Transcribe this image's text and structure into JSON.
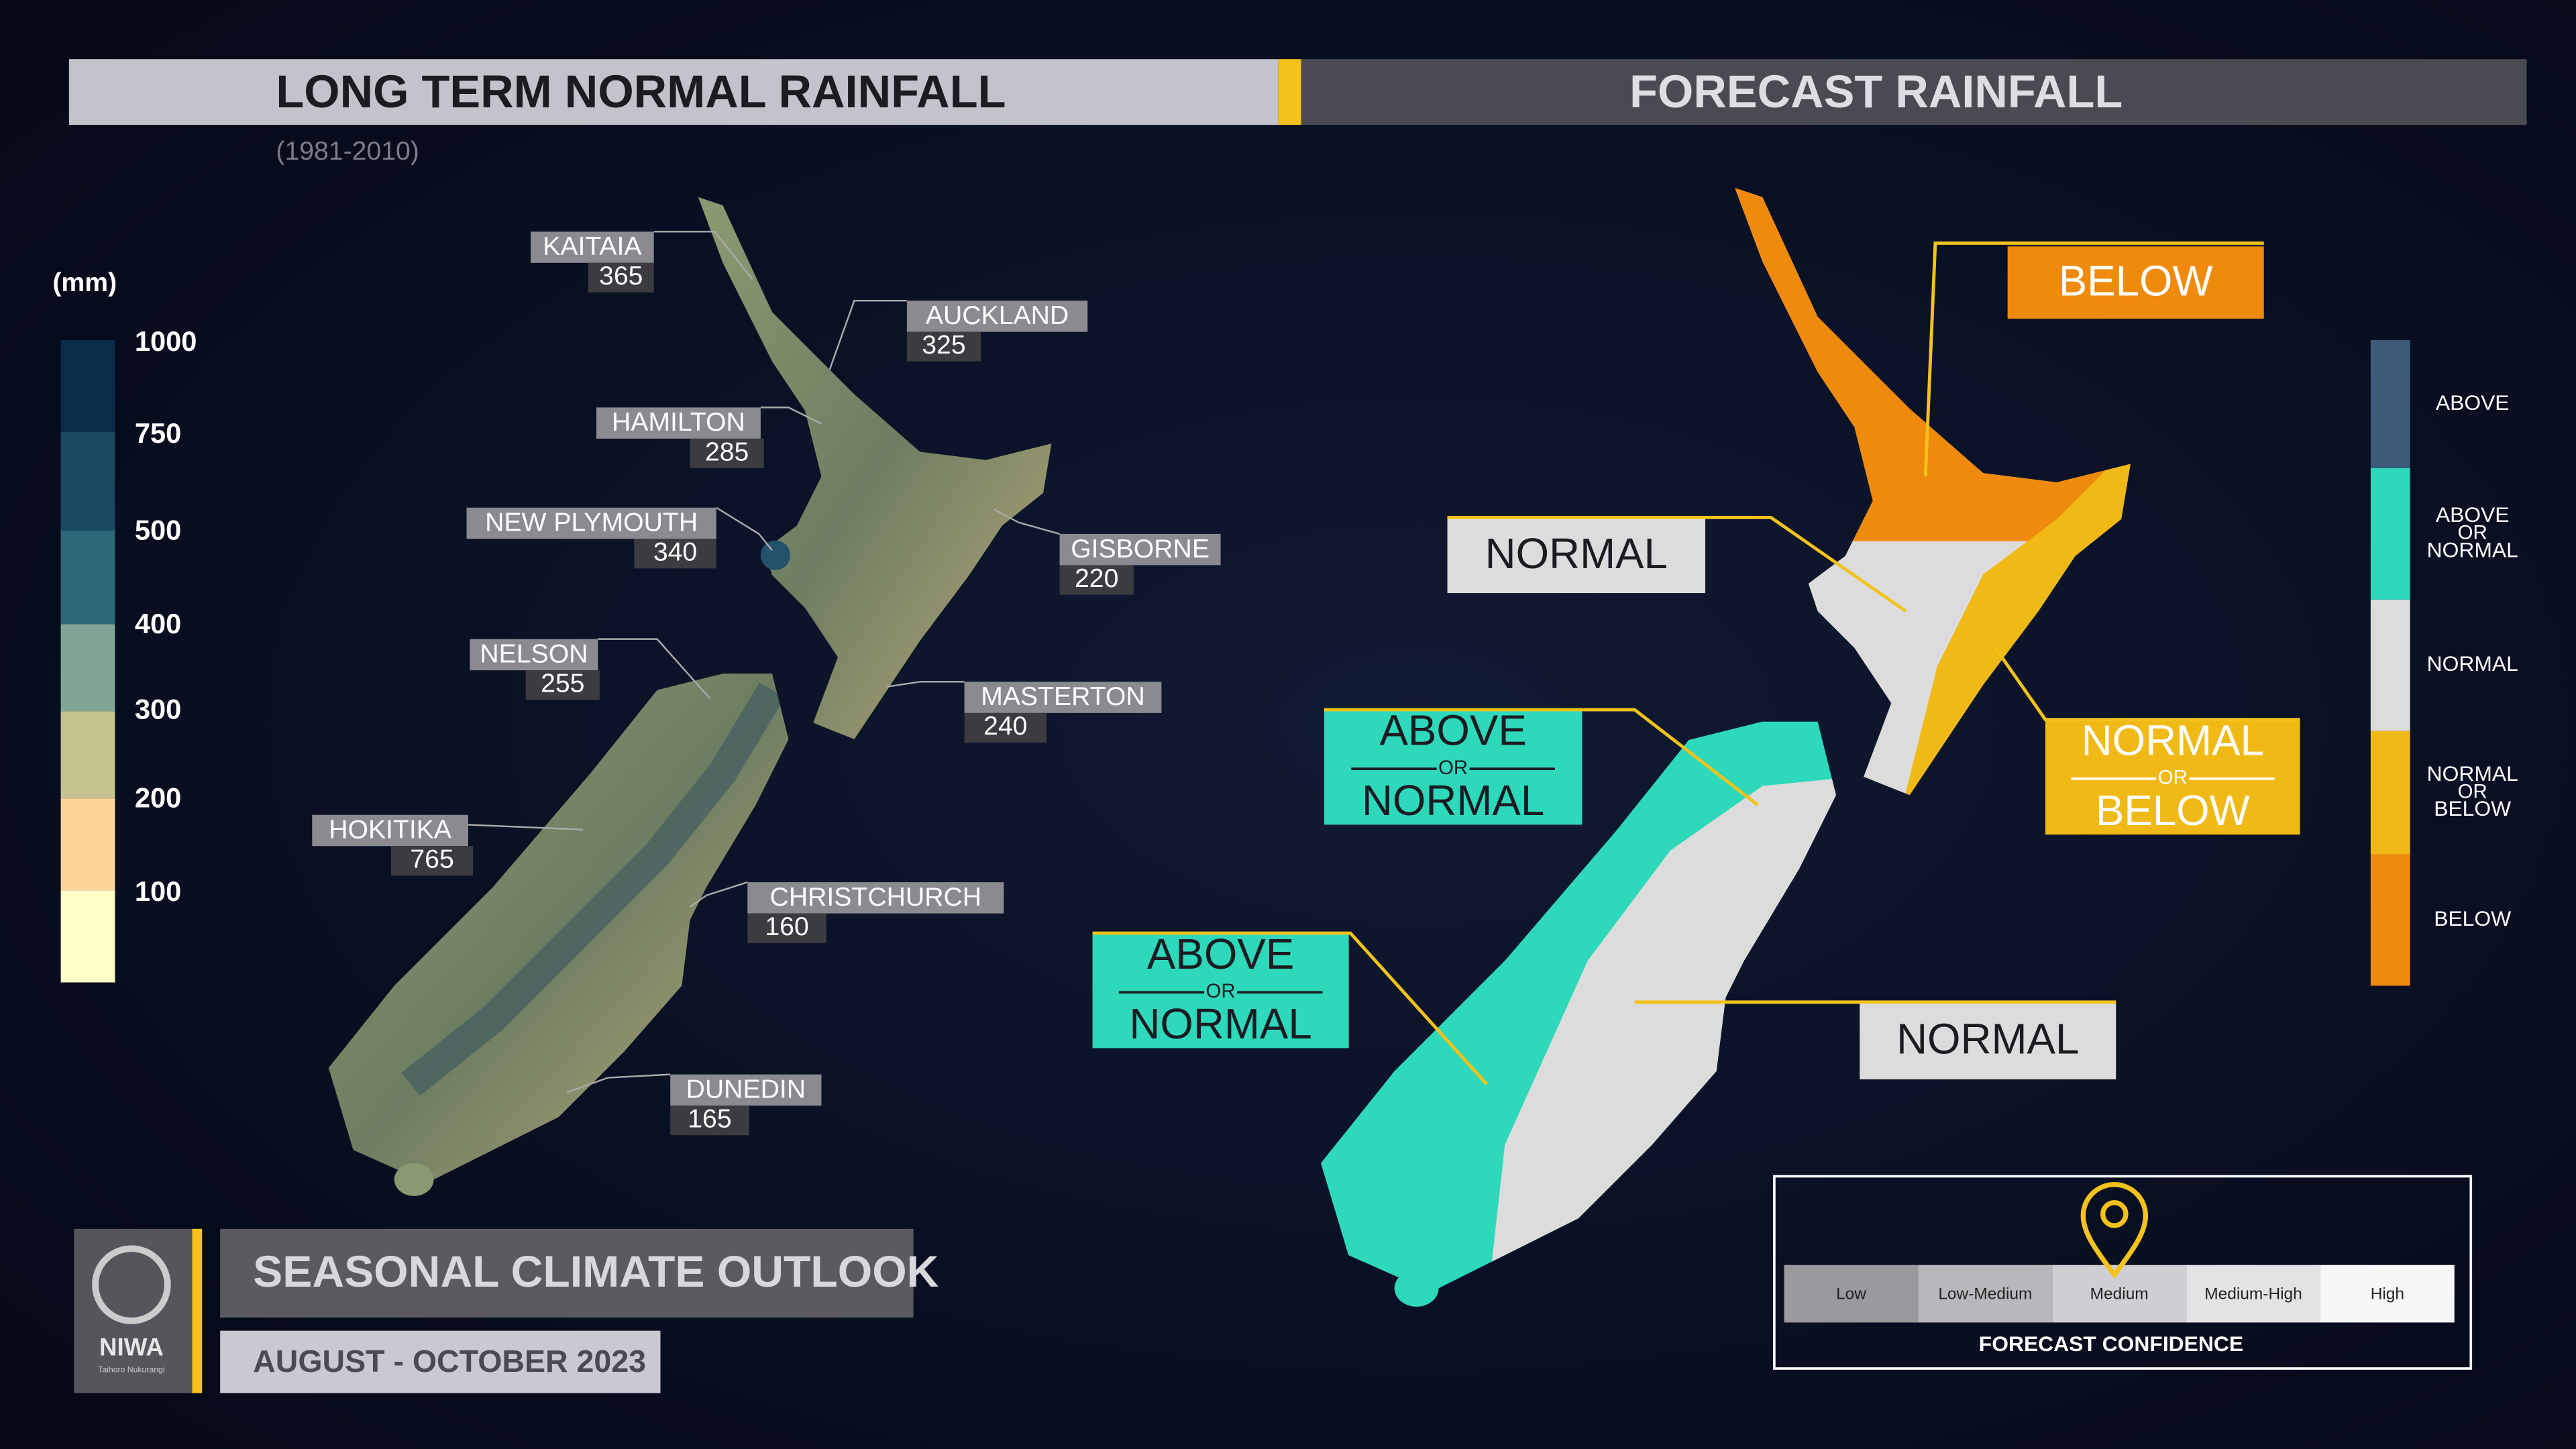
{
  "header": {
    "left_title": "LONG TERM NORMAL RAINFALL",
    "period": "(1981-2010)",
    "right_title": "FORECAST RAINFALL"
  },
  "rainfall_scale": {
    "unit": "(mm)",
    "ticks": [
      "1000",
      "750",
      "500",
      "400",
      "300",
      "200",
      "100"
    ]
  },
  "stations": [
    {
      "name": "KAITAIA",
      "value": "365"
    },
    {
      "name": "AUCKLAND",
      "value": "325"
    },
    {
      "name": "HAMILTON",
      "value": "285"
    },
    {
      "name": "NEW PLYMOUTH",
      "value": "340"
    },
    {
      "name": "GISBORNE",
      "value": "220"
    },
    {
      "name": "NELSON",
      "value": "255"
    },
    {
      "name": "MASTERTON",
      "value": "240"
    },
    {
      "name": "HOKITIKA",
      "value": "765"
    },
    {
      "name": "CHRISTCHURCH",
      "value": "160"
    },
    {
      "name": "DUNEDIN",
      "value": "165"
    }
  ],
  "forecast_regions": [
    {
      "lines": [
        "BELOW"
      ]
    },
    {
      "lines": [
        "NORMAL"
      ]
    },
    {
      "lines": [
        "NORMAL",
        "OR",
        "BELOW"
      ]
    },
    {
      "lines": [
        "ABOVE",
        "OR",
        "NORMAL"
      ]
    },
    {
      "lines": [
        "ABOVE",
        "OR",
        "NORMAL"
      ]
    },
    {
      "lines": [
        "NORMAL"
      ]
    }
  ],
  "forecast_legend": [
    {
      "lines": [
        "ABOVE"
      ]
    },
    {
      "lines": [
        "ABOVE",
        "OR",
        "NORMAL"
      ]
    },
    {
      "lines": [
        "NORMAL"
      ]
    },
    {
      "lines": [
        "NORMAL",
        "OR",
        "BELOW"
      ]
    },
    {
      "lines": [
        "BELOW"
      ]
    }
  ],
  "confidence": {
    "levels": [
      "Low",
      "Low-Medium",
      "Medium",
      "Medium-High",
      "High"
    ],
    "title": "FORECAST CONFIDENCE"
  },
  "footer": {
    "title": "SEASONAL CLIMATE OUTLOOK",
    "period": "AUGUST - OCTOBER 2023",
    "logo": "NIWA",
    "tagline": "Taihoro Nukurangi"
  }
}
